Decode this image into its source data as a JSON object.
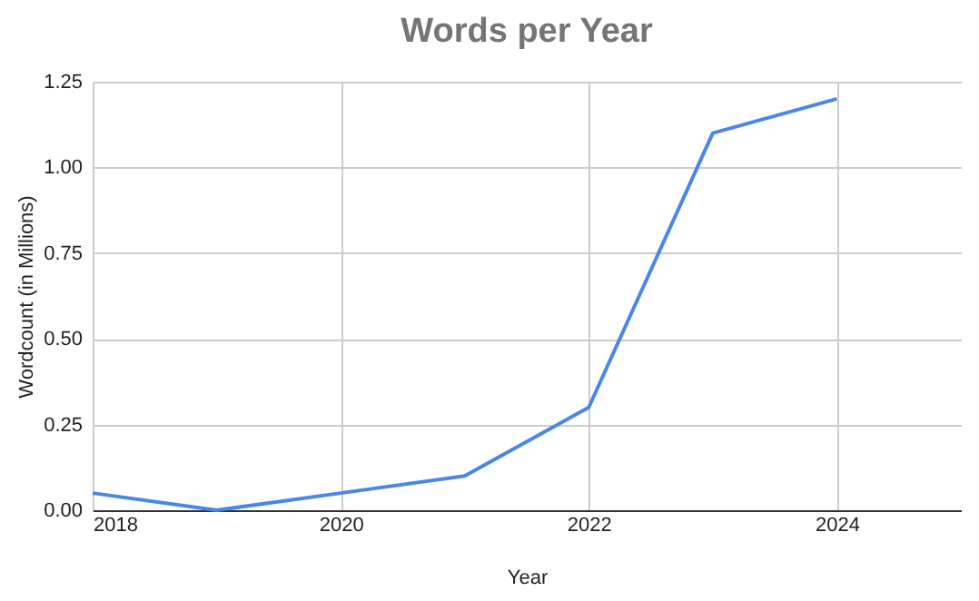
{
  "chart_data": {
    "type": "line",
    "title": "Words per Year",
    "xlabel": "Year",
    "ylabel": "Wordcount (in Millions)",
    "x": [
      2018,
      2019,
      2020,
      2021,
      2022,
      2023,
      2024
    ],
    "series": [
      {
        "color": "#4a86e8",
        "values": [
          0.05,
          0.0,
          0.05,
          0.1,
          0.3,
          1.1,
          1.2
        ]
      }
    ],
    "xlim": [
      2018,
      2025
    ],
    "xticks": [
      2018,
      2020,
      2022,
      2024
    ],
    "ylim": [
      0,
      1.25
    ],
    "yticks": [
      {
        "value": 0,
        "label": "0.00"
      },
      0.25,
      {
        "value": 0.5,
        "label": "0.50"
      },
      0.75,
      {
        "value": 1,
        "label": "1.00"
      },
      1.25
    ],
    "grid": true,
    "marker": "none",
    "line_style": "solid"
  }
}
